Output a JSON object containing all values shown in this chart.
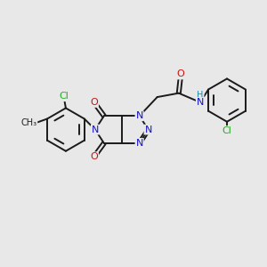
{
  "bg_color": "#e8e8e8",
  "bond_color": "#1a1a1a",
  "bond_width": 1.4,
  "dbo": 0.07,
  "atom_colors": {
    "C": "#1a1a1a",
    "N": "#1111cc",
    "O": "#cc1111",
    "Cl": "#22aa22",
    "H": "#2288aa"
  },
  "font_size": 8.0
}
